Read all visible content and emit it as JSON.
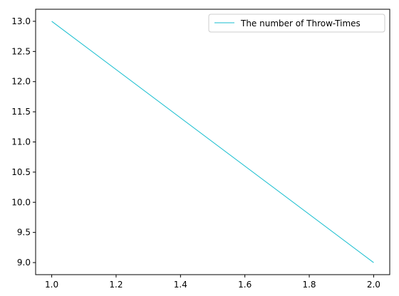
{
  "chart_data": {
    "type": "line",
    "title": "",
    "xlabel": "",
    "ylabel": "",
    "xlim": [
      0.95,
      2.05
    ],
    "ylim": [
      8.8,
      13.2
    ],
    "x_ticks": [
      1.0,
      1.2,
      1.4,
      1.6,
      1.8,
      2.0
    ],
    "x_tick_labels": [
      "1.0",
      "1.2",
      "1.4",
      "1.6",
      "1.8",
      "2.0"
    ],
    "y_ticks": [
      9.0,
      9.5,
      10.0,
      10.5,
      11.0,
      11.5,
      12.0,
      12.5,
      13.0
    ],
    "y_tick_labels": [
      "9.0",
      "9.5",
      "10.0",
      "10.5",
      "11.0",
      "11.5",
      "12.0",
      "12.5",
      "13.0"
    ],
    "grid": false,
    "legend_position": "top-right",
    "series": [
      {
        "name": "The number of Throw-Times",
        "color": "#17becf",
        "x": [
          1.0,
          2.0
        ],
        "y": [
          13.0,
          9.0
        ]
      }
    ]
  }
}
